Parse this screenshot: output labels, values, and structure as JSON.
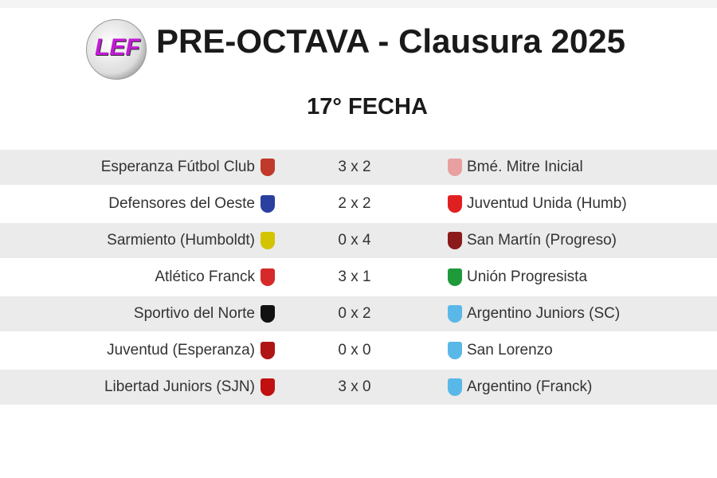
{
  "header": {
    "logo_text": "LEF",
    "title": "PRE-OCTAVA - Clausura 2025",
    "round": "17° FECHA"
  },
  "matches": [
    {
      "home": "Esperanza Fútbol Club",
      "score": "3 x 2",
      "away": "Bmé. Mitre Inicial",
      "home_color": "#c0392b",
      "away_color": "#e8a0a0"
    },
    {
      "home": "Defensores del Oeste",
      "score": "2 x 2",
      "away": "Juventud Unida (Humb)",
      "home_color": "#2a3fa0",
      "away_color": "#e02020"
    },
    {
      "home": "Sarmiento (Humboldt)",
      "score": "0 x 4",
      "away": "San Martín (Progreso)",
      "home_color": "#d4c400",
      "away_color": "#8b1a1a"
    },
    {
      "home": "Atlético Franck",
      "score": "3 x 1",
      "away": "Unión Progresista",
      "home_color": "#d62a2a",
      "away_color": "#1e9a3a"
    },
    {
      "home": "Sportivo del Norte",
      "score": "0 x 2",
      "away": "Argentino Juniors (SC)",
      "home_color": "#111111",
      "away_color": "#5ab8e8"
    },
    {
      "home": "Juventud (Esperanza)",
      "score": "0 x 0",
      "away": "San Lorenzo",
      "home_color": "#b01515",
      "away_color": "#5ab8e8"
    },
    {
      "home": "Libertad Juniors (SJN)",
      "score": "3 x 0",
      "away": "Argentino (Franck)",
      "home_color": "#c01010",
      "away_color": "#5ab8e8"
    }
  ]
}
